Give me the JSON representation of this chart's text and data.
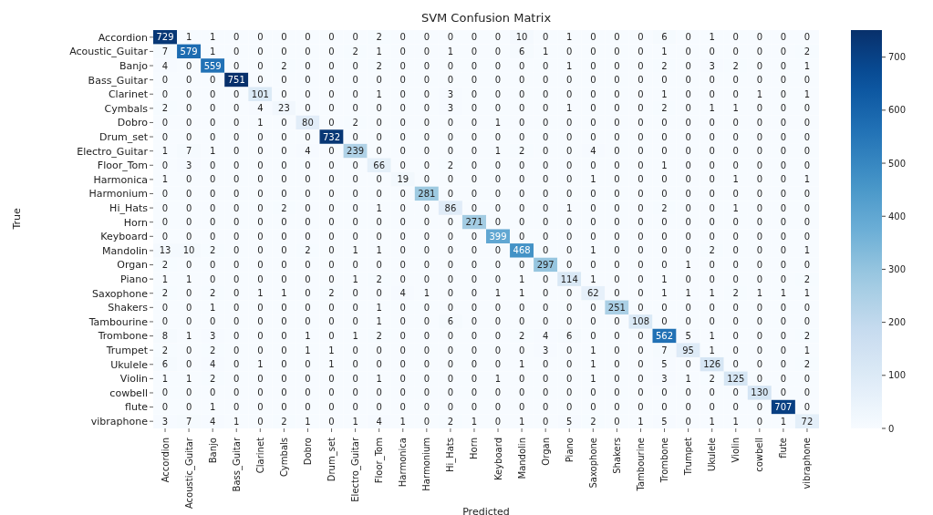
{
  "chart_data": {
    "type": "heatmap",
    "title": "SVM Confusion Matrix",
    "xlabel": "Predicted",
    "ylabel": "True",
    "categories": [
      "Accordion",
      "Acoustic_Guitar",
      "Banjo",
      "Bass_Guitar",
      "Clarinet",
      "Cymbals",
      "Dobro",
      "Drum_set",
      "Electro_Guitar",
      "Floor_Tom",
      "Harmonica",
      "Harmonium",
      "Hi_Hats",
      "Horn",
      "Keyboard",
      "Mandolin",
      "Organ",
      "Piano",
      "Saxophone",
      "Shakers",
      "Tambourine",
      "Trombone",
      "Trumpet",
      "Ukulele",
      "Violin",
      "cowbell",
      "flute",
      "vibraphone"
    ],
    "y_categories": [
      "Accordion",
      "Acoustic_Guitar",
      "Banjo",
      "Bass_Guitar",
      "Clarinet",
      "Cymbals",
      "Dobro",
      "Drum_set",
      "Electro_Guitar",
      "Floor_Tom",
      "Harmonica",
      "Harmonium",
      "Hi_Hats",
      "Horn",
      "Keyboard",
      "Mandolin",
      "Organ",
      "Piano",
      "Saxophone",
      "Shakers",
      "Tambourine",
      "Trombone",
      "Trumpet",
      "Ukulele",
      "Violin",
      "cowbell",
      "flute",
      "vibraphone"
    ],
    "cells": [
      [
        729,
        1,
        1,
        0,
        0,
        0,
        0,
        0,
        0,
        2,
        0,
        0,
        0,
        0,
        0,
        10,
        0,
        1,
        0,
        0,
        0,
        6,
        0,
        1,
        0,
        0,
        0,
        0
      ],
      [
        7,
        579,
        1,
        0,
        0,
        0,
        0,
        0,
        2,
        1,
        0,
        0,
        1,
        0,
        0,
        6,
        1,
        0,
        0,
        0,
        0,
        1,
        0,
        0,
        0,
        0,
        0,
        2
      ],
      [
        4,
        0,
        559,
        0,
        0,
        2,
        0,
        0,
        0,
        2,
        0,
        0,
        0,
        0,
        0,
        0,
        0,
        1,
        0,
        0,
        0,
        2,
        0,
        3,
        2,
        0,
        0,
        1
      ],
      [
        0,
        0,
        0,
        751,
        0,
        0,
        0,
        0,
        0,
        0,
        0,
        0,
        0,
        0,
        0,
        0,
        0,
        0,
        0,
        0,
        0,
        0,
        0,
        0,
        0,
        0,
        0,
        0
      ],
      [
        0,
        0,
        0,
        0,
        101,
        0,
        0,
        0,
        0,
        1,
        0,
        0,
        3,
        0,
        0,
        0,
        0,
        0,
        0,
        0,
        0,
        1,
        0,
        0,
        0,
        1,
        0,
        1
      ],
      [
        2,
        0,
        0,
        0,
        4,
        23,
        0,
        0,
        0,
        0,
        0,
        0,
        3,
        0,
        0,
        0,
        0,
        1,
        0,
        0,
        0,
        2,
        0,
        1,
        1,
        0,
        0,
        0
      ],
      [
        0,
        0,
        0,
        0,
        1,
        0,
        80,
        0,
        2,
        0,
        0,
        0,
        0,
        0,
        1,
        0,
        0,
        0,
        0,
        0,
        0,
        0,
        0,
        0,
        0,
        0,
        0,
        0
      ],
      [
        0,
        0,
        0,
        0,
        0,
        0,
        0,
        732,
        0,
        0,
        0,
        0,
        0,
        0,
        0,
        0,
        0,
        0,
        0,
        0,
        0,
        0,
        0,
        0,
        0,
        0,
        0,
        0
      ],
      [
        1,
        7,
        1,
        0,
        0,
        0,
        4,
        0,
        239,
        0,
        0,
        0,
        0,
        0,
        1,
        2,
        0,
        0,
        4,
        0,
        0,
        0,
        0,
        0,
        0,
        0,
        0,
        0
      ],
      [
        0,
        3,
        0,
        0,
        0,
        0,
        0,
        0,
        0,
        66,
        0,
        0,
        2,
        0,
        0,
        0,
        0,
        0,
        0,
        0,
        0,
        1,
        0,
        0,
        0,
        0,
        0,
        0
      ],
      [
        1,
        0,
        0,
        0,
        0,
        0,
        0,
        0,
        0,
        0,
        19,
        0,
        0,
        0,
        0,
        0,
        0,
        0,
        1,
        0,
        0,
        0,
        0,
        0,
        1,
        0,
        0,
        1
      ],
      [
        0,
        0,
        0,
        0,
        0,
        0,
        0,
        0,
        0,
        0,
        0,
        281,
        0,
        0,
        0,
        0,
        0,
        0,
        0,
        0,
        0,
        0,
        0,
        0,
        0,
        0,
        0,
        0
      ],
      [
        0,
        0,
        0,
        0,
        0,
        2,
        0,
        0,
        0,
        1,
        0,
        0,
        86,
        0,
        0,
        0,
        0,
        1,
        0,
        0,
        0,
        2,
        0,
        0,
        1,
        0,
        0,
        0
      ],
      [
        0,
        0,
        0,
        0,
        0,
        0,
        0,
        0,
        0,
        0,
        0,
        0,
        0,
        271,
        0,
        0,
        0,
        0,
        0,
        0,
        0,
        0,
        0,
        0,
        0,
        0,
        0,
        0
      ],
      [
        0,
        0,
        0,
        0,
        0,
        0,
        0,
        0,
        0,
        0,
        0,
        0,
        0,
        0,
        399,
        0,
        0,
        0,
        0,
        0,
        0,
        0,
        0,
        0,
        0,
        0,
        0,
        0
      ],
      [
        13,
        10,
        2,
        0,
        0,
        0,
        2,
        0,
        1,
        1,
        0,
        0,
        0,
        0,
        0,
        468,
        0,
        0,
        1,
        0,
        0,
        0,
        0,
        2,
        0,
        0,
        0,
        1
      ],
      [
        2,
        0,
        0,
        0,
        0,
        0,
        0,
        0,
        0,
        0,
        0,
        0,
        0,
        0,
        0,
        0,
        297,
        0,
        0,
        0,
        0,
        0,
        1,
        0,
        0,
        0,
        0,
        0
      ],
      [
        1,
        1,
        0,
        0,
        0,
        0,
        0,
        0,
        1,
        2,
        0,
        0,
        0,
        0,
        0,
        1,
        0,
        114,
        1,
        0,
        0,
        1,
        0,
        0,
        0,
        0,
        0,
        2
      ],
      [
        2,
        0,
        2,
        0,
        1,
        1,
        0,
        2,
        0,
        0,
        4,
        1,
        0,
        0,
        1,
        1,
        0,
        0,
        62,
        0,
        0,
        1,
        1,
        1,
        2,
        1,
        1,
        1
      ],
      [
        0,
        0,
        1,
        0,
        0,
        0,
        0,
        0,
        0,
        1,
        0,
        0,
        0,
        0,
        0,
        0,
        0,
        0,
        0,
        251,
        0,
        0,
        0,
        0,
        0,
        0,
        0,
        0
      ],
      [
        0,
        0,
        0,
        0,
        0,
        0,
        0,
        0,
        0,
        1,
        0,
        0,
        6,
        0,
        0,
        0,
        0,
        0,
        0,
        0,
        108,
        0,
        0,
        0,
        0,
        0,
        0,
        0
      ],
      [
        8,
        1,
        3,
        0,
        0,
        0,
        1,
        0,
        1,
        2,
        0,
        0,
        0,
        0,
        0,
        2,
        4,
        6,
        0,
        0,
        0,
        562,
        5,
        1,
        0,
        0,
        0,
        2
      ],
      [
        2,
        0,
        2,
        0,
        0,
        0,
        1,
        1,
        0,
        0,
        0,
        0,
        0,
        0,
        0,
        0,
        3,
        0,
        1,
        0,
        0,
        7,
        95,
        1,
        0,
        0,
        0,
        1
      ],
      [
        6,
        0,
        4,
        0,
        1,
        0,
        0,
        1,
        0,
        0,
        0,
        0,
        0,
        0,
        0,
        1,
        0,
        0,
        1,
        0,
        0,
        5,
        0,
        126,
        0,
        0,
        0,
        2
      ],
      [
        1,
        1,
        2,
        0,
        0,
        0,
        0,
        0,
        0,
        1,
        0,
        0,
        0,
        0,
        1,
        0,
        0,
        0,
        1,
        0,
        0,
        3,
        1,
        2,
        125,
        0,
        0,
        0
      ],
      [
        0,
        0,
        0,
        0,
        0,
        0,
        0,
        0,
        0,
        0,
        0,
        0,
        0,
        0,
        0,
        0,
        0,
        0,
        0,
        0,
        0,
        0,
        0,
        0,
        0,
        130,
        0,
        0
      ],
      [
        0,
        0,
        1,
        0,
        0,
        0,
        0,
        0,
        0,
        0,
        0,
        0,
        0,
        0,
        0,
        0,
        0,
        0,
        0,
        0,
        0,
        0,
        0,
        0,
        0,
        0,
        707,
        0
      ],
      [
        3,
        7,
        4,
        1,
        0,
        2,
        1,
        0,
        1,
        4,
        1,
        0,
        2,
        1,
        0,
        1,
        0,
        5,
        2,
        0,
        1,
        5,
        0,
        1,
        1,
        0,
        1,
        72
      ]
    ],
    "clim": [
      0,
      751
    ],
    "cticks": [
      0,
      100,
      200,
      300,
      400,
      500,
      600,
      700
    ],
    "data_labels": true
  }
}
